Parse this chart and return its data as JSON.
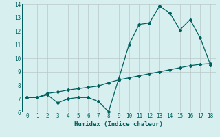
{
  "xlabel": "Humidex (Indice chaleur)",
  "x": [
    0,
    1,
    2,
    3,
    4,
    5,
    6,
    7,
    8,
    9,
    10,
    11,
    12,
    13,
    14,
    15,
    16,
    17,
    18
  ],
  "line1_y": [
    7.1,
    7.1,
    7.3,
    6.7,
    7.0,
    7.1,
    7.1,
    6.8,
    6.05,
    8.5,
    11.0,
    12.5,
    12.6,
    13.85,
    13.35,
    12.1,
    12.85,
    11.5,
    9.5
  ],
  "line2_y": [
    7.1,
    7.1,
    7.4,
    7.5,
    7.65,
    7.75,
    7.85,
    7.95,
    8.2,
    8.4,
    8.55,
    8.7,
    8.85,
    9.0,
    9.15,
    9.3,
    9.45,
    9.55,
    9.6
  ],
  "line_color": "#006060",
  "bg_color": "#d8efef",
  "grid_color": "#b8c8c8",
  "ylim": [
    6,
    14
  ],
  "xlim": [
    -0.5,
    18.5
  ],
  "yticks": [
    6,
    7,
    8,
    9,
    10,
    11,
    12,
    13,
    14
  ],
  "xticks": [
    0,
    1,
    2,
    3,
    4,
    5,
    6,
    7,
    8,
    9,
    10,
    11,
    12,
    13,
    14,
    15,
    16,
    17,
    18
  ]
}
